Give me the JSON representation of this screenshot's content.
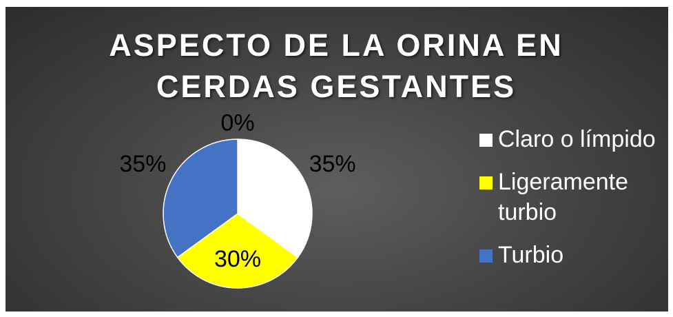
{
  "chart_data": {
    "type": "pie",
    "title": "ASPECTO DE LA ORINA EN CERDAS GESTANTES",
    "categories": [
      "Claro o límpido",
      "Ligeramente turbio",
      "Turbio",
      null
    ],
    "values": [
      35,
      30,
      35,
      0
    ],
    "value_labels": [
      "35%",
      "30%",
      "35%",
      "0%"
    ],
    "colors": [
      "#ffffff",
      "#ffff00",
      "#4472c4",
      null
    ],
    "legend": "right"
  }
}
